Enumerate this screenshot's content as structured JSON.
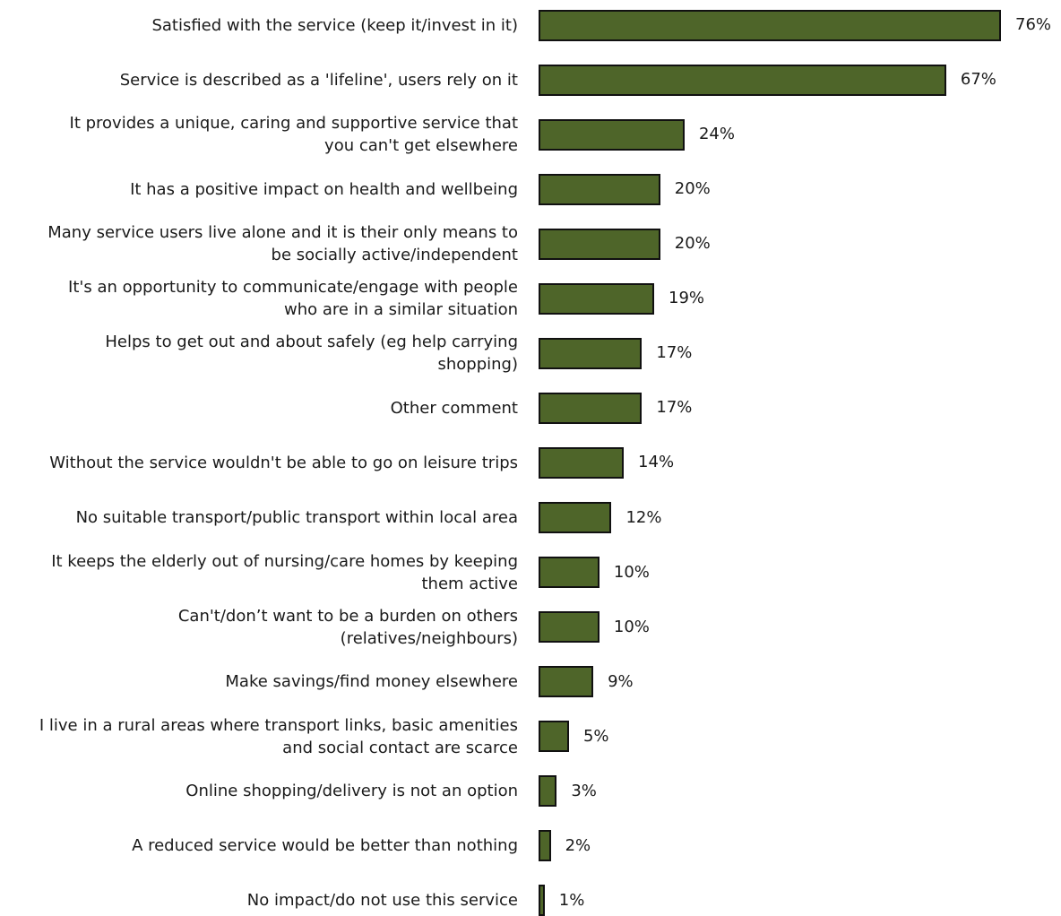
{
  "colors": {
    "bar_fill": "#4e6529",
    "bar_border": "#111111",
    "text": "#1a1a1a"
  },
  "chart_data": {
    "type": "bar",
    "orientation": "horizontal",
    "title": "",
    "xlabel": "",
    "ylabel": "",
    "xlim": [
      0,
      76
    ],
    "grid": false,
    "legend": "none",
    "value_suffix": "%",
    "categories": [
      "Satisfied with the service (keep it/invest in it)",
      "Service is described as a 'lifeline', users rely on it",
      "It provides a unique, caring and supportive service that you can't get elsewhere",
      "It has a positive impact on health and wellbeing",
      "Many service users live alone and it is their only means to be socially active/independent",
      "It's an opportunity to communicate/engage with people who are in a similar situation",
      "Helps to get out and about safely (eg help carrying shopping)",
      "Other comment",
      "Without the service wouldn't be able to go on leisure trips",
      "No suitable transport/public transport within local area",
      "It keeps the elderly out of nursing/care homes by keeping them active",
      "Can't/don’t want to be a burden on others (relatives/neighbours)",
      "Make savings/find money elsewhere",
      "I live in a rural areas where transport links, basic amenities and social contact are scarce",
      "Online shopping/delivery is not an option",
      "A reduced service would be better than nothing",
      "No impact/do not use this service"
    ],
    "label_lines": [
      [
        "Satisfied with the service (keep it/invest in it)"
      ],
      [
        "Service is described as a 'lifeline', users rely on it"
      ],
      [
        "It provides a unique, caring and supportive service that",
        "you can't get elsewhere"
      ],
      [
        "It has a positive impact on health and wellbeing"
      ],
      [
        "Many service users live alone and it is their only means to",
        "be socially active/independent"
      ],
      [
        "It's an opportunity to communicate/engage with people",
        "who are in a similar situation"
      ],
      [
        "Helps to get out and about safely (eg help carrying",
        "shopping)"
      ],
      [
        "Other comment"
      ],
      [
        "Without the service wouldn't be able to go on leisure trips"
      ],
      [
        "No suitable transport/public transport within local area"
      ],
      [
        "It keeps the elderly out of nursing/care homes by keeping",
        "them active"
      ],
      [
        "Can't/don’t want to be a burden on others",
        "(relatives/neighbours)"
      ],
      [
        "Make savings/find money elsewhere"
      ],
      [
        "I live in a rural areas where transport links, basic amenities",
        "and social contact are scarce"
      ],
      [
        "Online shopping/delivery is not an option"
      ],
      [
        "A reduced service would be better than nothing"
      ],
      [
        "No impact/do not use this service"
      ]
    ],
    "values": [
      76,
      67,
      24,
      20,
      20,
      19,
      17,
      17,
      14,
      12,
      10,
      10,
      9,
      5,
      3,
      2,
      1
    ],
    "value_labels": [
      "76%",
      "67%",
      "24%",
      "20%",
      "20%",
      "19%",
      "17%",
      "17%",
      "14%",
      "12%",
      "10%",
      "10%",
      "9%",
      "5%",
      "3%",
      "2%",
      "1%"
    ]
  }
}
